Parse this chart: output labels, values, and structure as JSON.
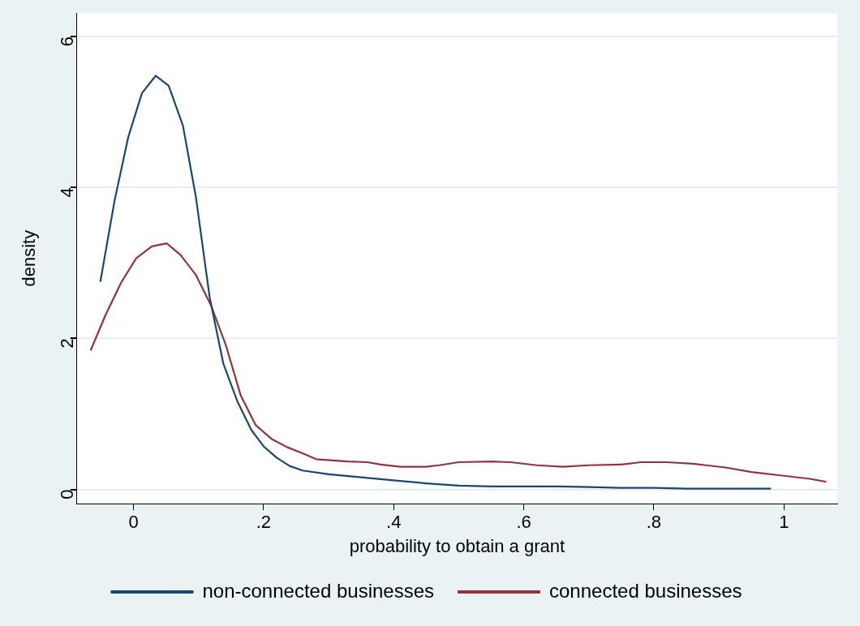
{
  "chart_data": {
    "type": "line",
    "xlabel": "probability to obtain a grant",
    "ylabel": "density",
    "xlim": [
      -0.087,
      1.082
    ],
    "ylim": [
      -0.19,
      6.31
    ],
    "xticks": [
      {
        "value": 0,
        "label": "0"
      },
      {
        "value": 0.2,
        "label": ".2"
      },
      {
        "value": 0.4,
        "label": ".4"
      },
      {
        "value": 0.6,
        "label": ".6"
      },
      {
        "value": 0.8,
        "label": ".8"
      },
      {
        "value": 1,
        "label": "1"
      }
    ],
    "yticks": [
      0,
      2,
      4,
      6
    ],
    "grid": "y",
    "legend": "bottom",
    "marker": "none",
    "line_style": "solid",
    "series": [
      {
        "name": "non-connected businesses",
        "color": "#1a476f",
        "x": [
          -0.051,
          -0.029,
          -0.008,
          0.013,
          0.034,
          0.054,
          0.076,
          0.096,
          0.117,
          0.138,
          0.16,
          0.181,
          0.2,
          0.22,
          0.24,
          0.26,
          0.3,
          0.35,
          0.4,
          0.45,
          0.5,
          0.55,
          0.6,
          0.65,
          0.7,
          0.75,
          0.8,
          0.85,
          0.9,
          0.98
        ],
        "values": [
          2.75,
          3.83,
          4.67,
          5.25,
          5.48,
          5.35,
          4.82,
          3.87,
          2.55,
          1.67,
          1.16,
          0.79,
          0.57,
          0.42,
          0.31,
          0.25,
          0.2,
          0.16,
          0.12,
          0.08,
          0.05,
          0.04,
          0.04,
          0.04,
          0.03,
          0.02,
          0.02,
          0.01,
          0.01,
          0.01
        ]
      },
      {
        "name": "connected businesses",
        "color": "#90353b",
        "x": [
          -0.066,
          -0.043,
          -0.019,
          0.004,
          0.028,
          0.051,
          0.072,
          0.096,
          0.119,
          0.142,
          0.165,
          0.188,
          0.212,
          0.236,
          0.259,
          0.281,
          0.33,
          0.36,
          0.38,
          0.41,
          0.45,
          0.47,
          0.5,
          0.55,
          0.58,
          0.62,
          0.66,
          0.7,
          0.75,
          0.78,
          0.82,
          0.86,
          0.88,
          0.91,
          0.95,
          1.0,
          1.04,
          1.065
        ],
        "values": [
          1.84,
          2.31,
          2.74,
          3.06,
          3.22,
          3.26,
          3.11,
          2.84,
          2.44,
          1.91,
          1.24,
          0.85,
          0.67,
          0.56,
          0.48,
          0.4,
          0.37,
          0.36,
          0.33,
          0.3,
          0.3,
          0.32,
          0.36,
          0.37,
          0.36,
          0.32,
          0.3,
          0.32,
          0.33,
          0.36,
          0.36,
          0.34,
          0.32,
          0.29,
          0.23,
          0.18,
          0.14,
          0.1
        ]
      }
    ]
  }
}
